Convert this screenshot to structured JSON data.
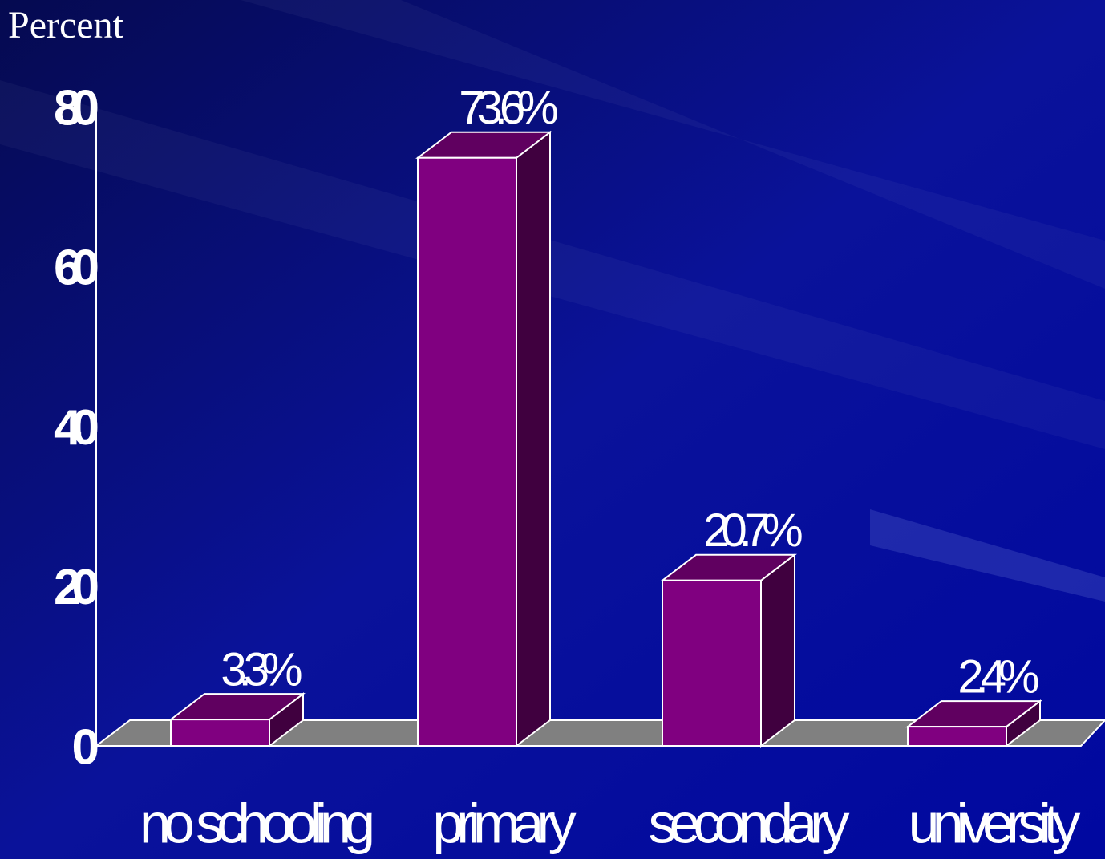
{
  "chart_data": {
    "type": "bar3d",
    "y_label": "Percent",
    "categories": [
      "no schooling",
      "primary",
      "secondary",
      "university"
    ],
    "values": [
      3.3,
      73.6,
      20.7,
      2.4
    ],
    "value_labels": [
      "3.3%",
      "73.6%",
      "20.7%",
      "2.4%"
    ],
    "color": "#800080",
    "ylim": [
      0,
      80
    ],
    "yticks": [
      0,
      20,
      40,
      60,
      80
    ]
  }
}
